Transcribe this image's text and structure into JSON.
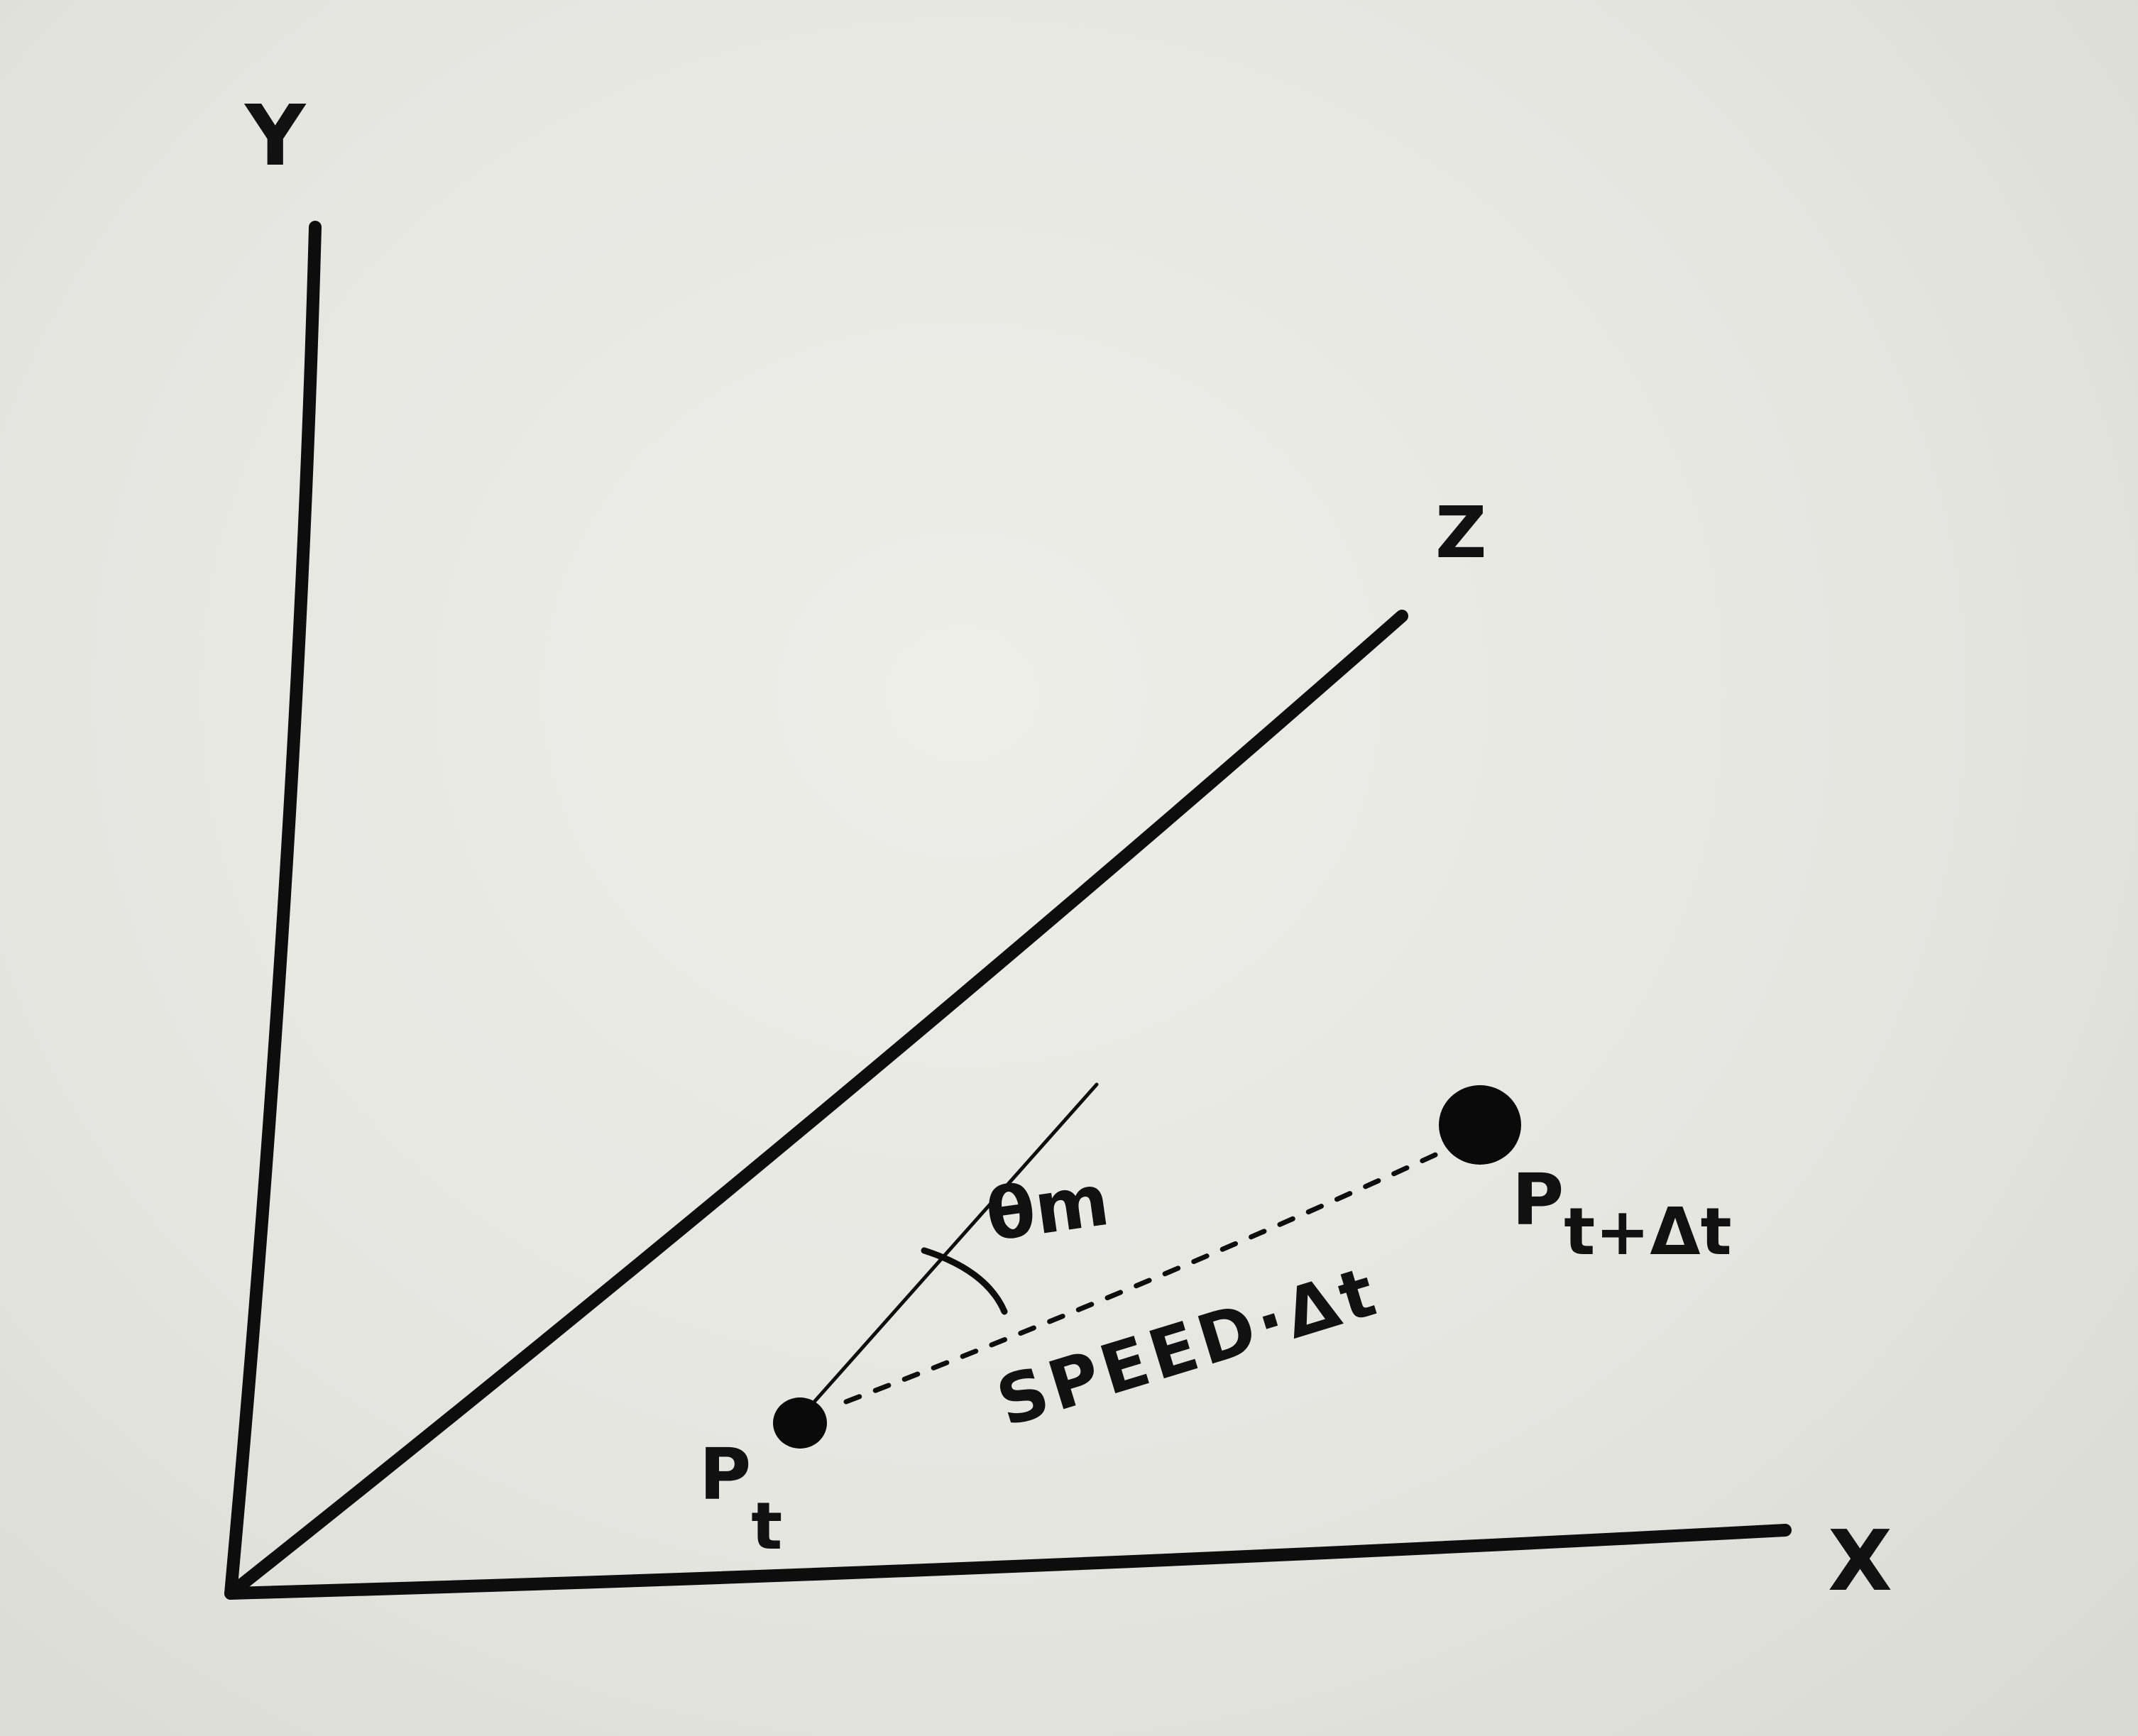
{
  "axes": {
    "y_label": "Y",
    "z_label": "Z",
    "x_label": "X"
  },
  "points": {
    "start": {
      "base": "P",
      "sub": "t"
    },
    "end": {
      "base": "P",
      "sub": "t+Δt"
    }
  },
  "angle_label": "θm",
  "segment_label": "SPEED·Δt"
}
